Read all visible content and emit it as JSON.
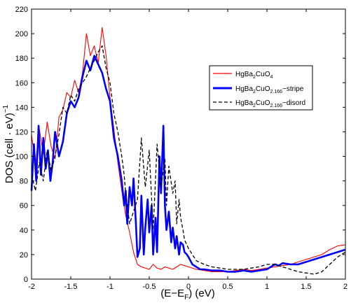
{
  "chart_data": {
    "type": "line",
    "xlim": [
      -2,
      2
    ],
    "ylim": [
      0,
      220
    ],
    "x_ticks": [
      -2,
      -1.5,
      -1,
      -0.5,
      0,
      0.5,
      1,
      1.5,
      2
    ],
    "y_ticks": [
      0,
      20,
      40,
      60,
      80,
      100,
      120,
      140,
      160,
      180,
      200,
      220
    ],
    "x_tick_labels": [
      "-2",
      "-1.5",
      "-1",
      "-0.5",
      "0",
      "0.5",
      "1",
      "1.5",
      "2"
    ],
    "y_tick_labels": [
      "0",
      "20",
      "40",
      "60",
      "80",
      "100",
      "120",
      "140",
      "160",
      "180",
      "200",
      "220"
    ],
    "xlabel": {
      "main": "(E−E",
      "sub": "F",
      "tail": ") (eV)"
    },
    "ylabel": {
      "main": "DOS (cell · eV)",
      "sup": "−1"
    },
    "grid": false,
    "legend_position": "upper-right",
    "series": [
      {
        "name": {
          "base": "HgBa",
          "s1": "2",
          "mid": "CuO",
          "s2": "4",
          "suffix": ""
        },
        "color": "#ff0000",
        "style": "solid",
        "x": [
          -2.0,
          -1.95,
          -1.9,
          -1.85,
          -1.8,
          -1.75,
          -1.7,
          -1.65,
          -1.6,
          -1.55,
          -1.5,
          -1.45,
          -1.4,
          -1.35,
          -1.3,
          -1.25,
          -1.2,
          -1.15,
          -1.1,
          -1.05,
          -1.0,
          -0.95,
          -0.9,
          -0.85,
          -0.8,
          -0.75,
          -0.7,
          -0.65,
          -0.6,
          -0.55,
          -0.5,
          -0.45,
          -0.4,
          -0.35,
          -0.3,
          -0.25,
          -0.2,
          -0.15,
          -0.1,
          -0.05,
          0.0,
          0.1,
          0.2,
          0.3,
          0.4,
          0.5,
          0.6,
          0.7,
          0.8,
          0.9,
          1.0,
          1.1,
          1.2,
          1.3,
          1.4,
          1.5,
          1.6,
          1.7,
          1.8,
          1.9,
          2.0
        ],
        "y": [
          118,
          92,
          122,
          102,
          128,
          108,
          98,
          132,
          138,
          152,
          148,
          162,
          152,
          168,
          200,
          182,
          190,
          176,
          205,
          182,
          148,
          122,
          95,
          72,
          52,
          38,
          22,
          12,
          10,
          9,
          8,
          12,
          9,
          8,
          10,
          9,
          8,
          10,
          12,
          11,
          10,
          8,
          7,
          6,
          6,
          6,
          7,
          8,
          7,
          8,
          9,
          10,
          11,
          12,
          14,
          16,
          18,
          20,
          24,
          27,
          28
        ]
      },
      {
        "name": {
          "base": "HgBa",
          "s1": "2",
          "mid": "CuO",
          "s2": "2.166",
          "suffix": "−stripe"
        },
        "color": "#0000ff",
        "style": "solid",
        "x": [
          -2.0,
          -1.97,
          -1.94,
          -1.91,
          -1.88,
          -1.85,
          -1.82,
          -1.79,
          -1.76,
          -1.73,
          -1.7,
          -1.65,
          -1.6,
          -1.55,
          -1.5,
          -1.45,
          -1.4,
          -1.35,
          -1.3,
          -1.25,
          -1.2,
          -1.15,
          -1.1,
          -1.05,
          -1.0,
          -0.95,
          -0.9,
          -0.85,
          -0.82,
          -0.8,
          -0.78,
          -0.75,
          -0.72,
          -0.7,
          -0.67,
          -0.65,
          -0.62,
          -0.6,
          -0.57,
          -0.55,
          -0.52,
          -0.5,
          -0.47,
          -0.45,
          -0.42,
          -0.4,
          -0.37,
          -0.35,
          -0.32,
          -0.3,
          -0.28,
          -0.25,
          -0.22,
          -0.2,
          -0.17,
          -0.15,
          -0.12,
          -0.1,
          -0.07,
          -0.05,
          -0.02,
          0.0,
          0.05,
          0.1,
          0.15,
          0.2,
          0.3,
          0.4,
          0.5,
          0.6,
          0.7,
          0.8,
          0.9,
          1.0,
          1.05,
          1.1,
          1.15,
          1.2,
          1.3,
          1.4,
          1.5,
          1.6,
          1.7,
          1.8,
          1.9,
          2.0
        ],
        "y": [
          72,
          110,
          80,
          125,
          85,
          115,
          90,
          105,
          80,
          95,
          120,
          100,
          112,
          135,
          145,
          140,
          148,
          165,
          178,
          170,
          182,
          175,
          168,
          155,
          145,
          115,
          100,
          80,
          60,
          72,
          45,
          75,
          60,
          82,
          45,
          18,
          25,
          68,
          20,
          42,
          65,
          38,
          60,
          20,
          50,
          22,
          100,
          70,
          125,
          60,
          40,
          55,
          30,
          42,
          25,
          35,
          20,
          30,
          28,
          22,
          20,
          18,
          12,
          10,
          8,
          8,
          7,
          7,
          6,
          6,
          7,
          6,
          7,
          8,
          10,
          12,
          11,
          13,
          12,
          12,
          14,
          16,
          18,
          20,
          22,
          24
        ]
      },
      {
        "name": {
          "base": "HgBa",
          "s1": "2",
          "mid": "CuO",
          "s2": "2.166",
          "suffix": "−disord"
        },
        "color": "#000000",
        "style": "dashed",
        "x": [
          -2.0,
          -1.95,
          -1.9,
          -1.85,
          -1.8,
          -1.75,
          -1.7,
          -1.65,
          -1.6,
          -1.55,
          -1.5,
          -1.45,
          -1.4,
          -1.35,
          -1.3,
          -1.25,
          -1.2,
          -1.15,
          -1.1,
          -1.05,
          -1.0,
          -0.95,
          -0.9,
          -0.85,
          -0.82,
          -0.8,
          -0.75,
          -0.7,
          -0.65,
          -0.62,
          -0.6,
          -0.55,
          -0.5,
          -0.45,
          -0.42,
          -0.4,
          -0.35,
          -0.3,
          -0.28,
          -0.25,
          -0.2,
          -0.17,
          -0.15,
          -0.12,
          -0.1,
          -0.07,
          -0.05,
          0.0,
          0.05,
          0.1,
          0.2,
          0.3,
          0.4,
          0.5,
          0.6,
          0.7,
          0.8,
          0.9,
          1.0,
          1.1,
          1.2,
          1.3,
          1.4,
          1.5,
          1.6,
          1.7,
          1.8,
          1.9,
          2.0
        ],
        "y": [
          85,
          72,
          95,
          80,
          105,
          88,
          100,
          118,
          140,
          135,
          150,
          145,
          155,
          160,
          165,
          172,
          178,
          185,
          190,
          172,
          160,
          135,
          120,
          100,
          85,
          70,
          45,
          55,
          65,
          95,
          115,
          75,
          105,
          40,
          82,
          110,
          75,
          98,
          60,
          92,
          70,
          80,
          45,
          65,
          50,
          40,
          32,
          25,
          20,
          15,
          12,
          10,
          9,
          8,
          8,
          8,
          9,
          10,
          12,
          12,
          10,
          8,
          6,
          5,
          4,
          6,
          12,
          18,
          22
        ]
      }
    ]
  }
}
